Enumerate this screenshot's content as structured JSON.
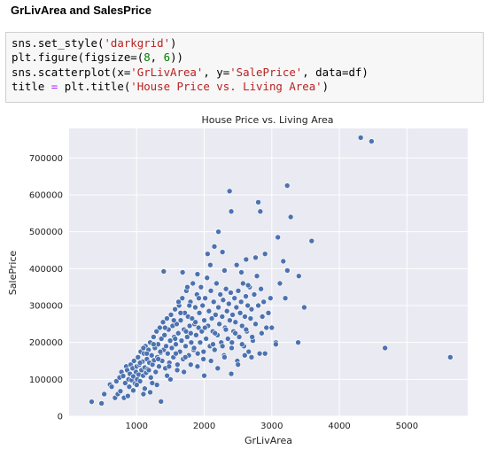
{
  "heading": "GrLivArea and SalesPrice",
  "code": {
    "line1": {
      "pre": "sns.set_style(",
      "str": "'darkgrid'",
      "post": ")"
    },
    "line2": {
      "pre": "plt.figure(figsize=(",
      "n1": "8",
      "mid": ", ",
      "n2": "6",
      "post": "))"
    },
    "line3": {
      "pre": "sns.scatterplot(x=",
      "s1": "'GrLivArea'",
      "mid1": ", y=",
      "s2": "'SalePrice'",
      "mid2": ", data=df)"
    },
    "line4": {
      "pre": "title ",
      "eq": "=",
      "mid": " plt.title(",
      "str": "'House Price vs. Living Area'",
      "post": ")"
    }
  },
  "chart_data": {
    "type": "scatter",
    "title": "House Price vs. Living Area",
    "xlabel": "GrLivArea",
    "ylabel": "SalePrice",
    "xlim": [
      0,
      5900
    ],
    "ylim": [
      0,
      780000
    ],
    "xticks": [
      1000,
      2000,
      3000,
      4000,
      5000
    ],
    "yticks": [
      0,
      100000,
      200000,
      300000,
      400000,
      500000,
      600000,
      700000
    ],
    "ytick_labels": [
      "0",
      "100000",
      "200000",
      "300000",
      "400000",
      "500000",
      "600000",
      "700000"
    ],
    "xtick_labels": [
      "1000",
      "2000",
      "3000",
      "4000",
      "5000"
    ],
    "style": "darkgrid",
    "grid": true,
    "point_color": "#4c72b0",
    "background": "#eaeaf2",
    "points": [
      [
        334,
        39300
      ],
      [
        480,
        35000
      ],
      [
        520,
        60000
      ],
      [
        605,
        86000
      ],
      [
        630,
        80000
      ],
      [
        680,
        50000
      ],
      [
        700,
        95000
      ],
      [
        720,
        60000
      ],
      [
        747,
        105000
      ],
      [
        760,
        68000
      ],
      [
        775,
        120000
      ],
      [
        800,
        109000
      ],
      [
        812,
        50000
      ],
      [
        830,
        90000
      ],
      [
        845,
        135000
      ],
      [
        860,
        125000
      ],
      [
        880,
        100000
      ],
      [
        890,
        80000
      ],
      [
        900,
        115000
      ],
      [
        912,
        140000
      ],
      [
        925,
        98000
      ],
      [
        940,
        130000
      ],
      [
        950,
        108000
      ],
      [
        960,
        150000
      ],
      [
        975,
        89000
      ],
      [
        990,
        120000
      ],
      [
        1000,
        135000
      ],
      [
        1008,
        100000
      ],
      [
        1020,
        160000
      ],
      [
        1030,
        113000
      ],
      [
        1040,
        140000
      ],
      [
        1050,
        95000
      ],
      [
        1060,
        175000
      ],
      [
        1072,
        125000
      ],
      [
        1085,
        148000
      ],
      [
        1096,
        110000
      ],
      [
        1108,
        170000
      ],
      [
        1120,
        132000
      ],
      [
        1130,
        190000
      ],
      [
        1140,
        118000
      ],
      [
        1152,
        155000
      ],
      [
        1164,
        128000
      ],
      [
        1176,
        180000
      ],
      [
        1188,
        145000
      ],
      [
        1200,
        200000
      ],
      [
        1210,
        105000
      ],
      [
        1222,
        165000
      ],
      [
        1234,
        140000
      ],
      [
        1246,
        215000
      ],
      [
        1258,
        152000
      ],
      [
        1270,
        185000
      ],
      [
        1282,
        120000
      ],
      [
        1294,
        230000
      ],
      [
        1306,
        160000
      ],
      [
        1318,
        195000
      ],
      [
        1330,
        135000
      ],
      [
        1342,
        240000
      ],
      [
        1354,
        172000
      ],
      [
        1366,
        210000
      ],
      [
        1378,
        150000
      ],
      [
        1390,
        255000
      ],
      [
        1400,
        180000
      ],
      [
        1412,
        220000
      ],
      [
        1424,
        130000
      ],
      [
        1436,
        190000
      ],
      [
        1448,
        265000
      ],
      [
        1460,
        170000
      ],
      [
        1472,
        235000
      ],
      [
        1484,
        145000
      ],
      [
        1496,
        205000
      ],
      [
        1508,
        275000
      ],
      [
        1520,
        185000
      ],
      [
        1532,
        245000
      ],
      [
        1544,
        160000
      ],
      [
        1556,
        215000
      ],
      [
        1568,
        290000
      ],
      [
        1580,
        195000
      ],
      [
        1592,
        250000
      ],
      [
        1604,
        140000
      ],
      [
        1616,
        225000
      ],
      [
        1628,
        300000
      ],
      [
        1640,
        175000
      ],
      [
        1652,
        260000
      ],
      [
        1664,
        205000
      ],
      [
        1676,
        320000
      ],
      [
        1688,
        155000
      ],
      [
        1700,
        235000
      ],
      [
        1712,
        280000
      ],
      [
        1724,
        190000
      ],
      [
        1736,
        340000
      ],
      [
        1748,
        215000
      ],
      [
        1760,
        270000
      ],
      [
        1772,
        165000
      ],
      [
        1784,
        245000
      ],
      [
        1796,
        310000
      ],
      [
        1808,
        200000
      ],
      [
        1820,
        265000
      ],
      [
        1832,
        360000
      ],
      [
        1844,
        180000
      ],
      [
        1856,
        250000
      ],
      [
        1868,
        295000
      ],
      [
        1880,
        220000
      ],
      [
        1892,
        330000
      ],
      [
        1904,
        170000
      ],
      [
        1916,
        240000
      ],
      [
        1928,
        280000
      ],
      [
        1940,
        200000
      ],
      [
        1952,
        350000
      ],
      [
        1964,
        230000
      ],
      [
        1976,
        300000
      ],
      [
        1988,
        155000
      ],
      [
        2000,
        260000
      ],
      [
        2014,
        320000
      ],
      [
        2028,
        210000
      ],
      [
        2042,
        375000
      ],
      [
        2056,
        245000
      ],
      [
        2070,
        285000
      ],
      [
        2084,
        190000
      ],
      [
        2098,
        340000
      ],
      [
        2112,
        265000
      ],
      [
        2126,
        230000
      ],
      [
        2140,
        310000
      ],
      [
        2154,
        180000
      ],
      [
        2168,
        275000
      ],
      [
        2182,
        360000
      ],
      [
        2196,
        220000
      ],
      [
        2210,
        295000
      ],
      [
        2224,
        250000
      ],
      [
        2238,
        330000
      ],
      [
        2252,
        200000
      ],
      [
        2266,
        270000
      ],
      [
        2280,
        315000
      ],
      [
        2294,
        165000
      ],
      [
        2308,
        240000
      ],
      [
        2322,
        345000
      ],
      [
        2336,
        285000
      ],
      [
        2350,
        210000
      ],
      [
        2364,
        305000
      ],
      [
        2378,
        260000
      ],
      [
        2392,
        335000
      ],
      [
        2406,
        185000
      ],
      [
        2420,
        275000
      ],
      [
        2434,
        230000
      ],
      [
        2448,
        320000
      ],
      [
        2462,
        255000
      ],
      [
        2476,
        295000
      ],
      [
        2490,
        150000
      ],
      [
        2504,
        340000
      ],
      [
        2518,
        215000
      ],
      [
        2532,
        280000
      ],
      [
        2546,
        310000
      ],
      [
        2560,
        245000
      ],
      [
        2574,
        360000
      ],
      [
        2588,
        190000
      ],
      [
        2602,
        270000
      ],
      [
        2616,
        325000
      ],
      [
        2630,
        230000
      ],
      [
        2644,
        300000
      ],
      [
        2658,
        175000
      ],
      [
        2672,
        350000
      ],
      [
        2686,
        265000
      ],
      [
        2700,
        290000
      ],
      [
        2720,
        205000
      ],
      [
        2740,
        330000
      ],
      [
        2760,
        250000
      ],
      [
        2780,
        380000
      ],
      [
        2800,
        300000
      ],
      [
        2820,
        170000
      ],
      [
        2840,
        345000
      ],
      [
        2860,
        270000
      ],
      [
        2880,
        310000
      ],
      [
        2900,
        440000
      ],
      [
        2920,
        240000
      ],
      [
        2950,
        280000
      ],
      [
        2980,
        320000
      ],
      [
        1400,
        392500
      ],
      [
        1680,
        390000
      ],
      [
        1900,
        385000
      ],
      [
        2090,
        410000
      ],
      [
        2300,
        395000
      ],
      [
        2400,
        555000
      ],
      [
        2375,
        610000
      ],
      [
        2210,
        500000
      ],
      [
        2830,
        555000
      ],
      [
        2800,
        580000
      ],
      [
        2620,
        425000
      ],
      [
        3090,
        485000
      ],
      [
        3228,
        625000
      ],
      [
        3280,
        540000
      ],
      [
        3170,
        420000
      ],
      [
        3230,
        395000
      ],
      [
        3120,
        360000
      ],
      [
        3200,
        320000
      ],
      [
        3000,
        240000
      ],
      [
        3060,
        200000
      ],
      [
        3060,
        195000
      ],
      [
        3400,
        380000
      ],
      [
        3390,
        200000
      ],
      [
        3480,
        295000
      ],
      [
        3590,
        475000
      ],
      [
        4316,
        755000
      ],
      [
        4476,
        745000
      ],
      [
        4676,
        185000
      ],
      [
        5642,
        160000
      ],
      [
        1360,
        40000
      ],
      [
        1100,
        60000
      ],
      [
        1200,
        65000
      ],
      [
        1300,
        85000
      ],
      [
        1500,
        100000
      ],
      [
        1700,
        120000
      ],
      [
        1900,
        135000
      ],
      [
        2100,
        150000
      ],
      [
        2300,
        160000
      ],
      [
        2500,
        140000
      ],
      [
        2700,
        160000
      ],
      [
        2900,
        170000
      ],
      [
        1650,
        280000
      ],
      [
        1550,
        260000
      ],
      [
        1750,
        350000
      ],
      [
        2050,
        440000
      ],
      [
        2550,
        390000
      ],
      [
        2650,
        355000
      ],
      [
        2480,
        410000
      ],
      [
        2760,
        430000
      ],
      [
        2150,
        460000
      ],
      [
        2270,
        445000
      ],
      [
        1800,
        225000
      ],
      [
        1350,
        175000
      ],
      [
        1250,
        195000
      ],
      [
        1150,
        170000
      ],
      [
        950,
        70000
      ],
      [
        870,
        55000
      ],
      [
        1000,
        85000
      ],
      [
        1120,
        75000
      ],
      [
        1230,
        90000
      ],
      [
        1450,
        110000
      ],
      [
        1600,
        125000
      ],
      [
        1800,
        140000
      ],
      [
        2000,
        110000
      ],
      [
        2200,
        130000
      ],
      [
        2400,
        115000
      ],
      [
        2600,
        165000
      ],
      [
        1050,
        145000
      ],
      [
        1180,
        125000
      ],
      [
        1320,
        155000
      ],
      [
        1480,
        135000
      ],
      [
        1580,
        170000
      ],
      [
        1720,
        160000
      ],
      [
        1850,
        185000
      ],
      [
        1990,
        175000
      ],
      [
        2130,
        195000
      ],
      [
        2270,
        190000
      ],
      [
        2410,
        200000
      ],
      [
        2560,
        195000
      ],
      [
        2710,
        215000
      ],
      [
        2850,
        225000
      ],
      [
        1100,
        185000
      ],
      [
        1250,
        215000
      ],
      [
        1420,
        240000
      ],
      [
        1570,
        210000
      ],
      [
        1730,
        230000
      ],
      [
        1870,
        255000
      ],
      [
        2010,
        240000
      ],
      [
        2160,
        225000
      ],
      [
        2320,
        235000
      ],
      [
        2460,
        225000
      ],
      [
        2620,
        235000
      ],
      [
        1620,
        310000
      ],
      [
        1780,
        300000
      ],
      [
        1920,
        320000
      ]
    ]
  }
}
